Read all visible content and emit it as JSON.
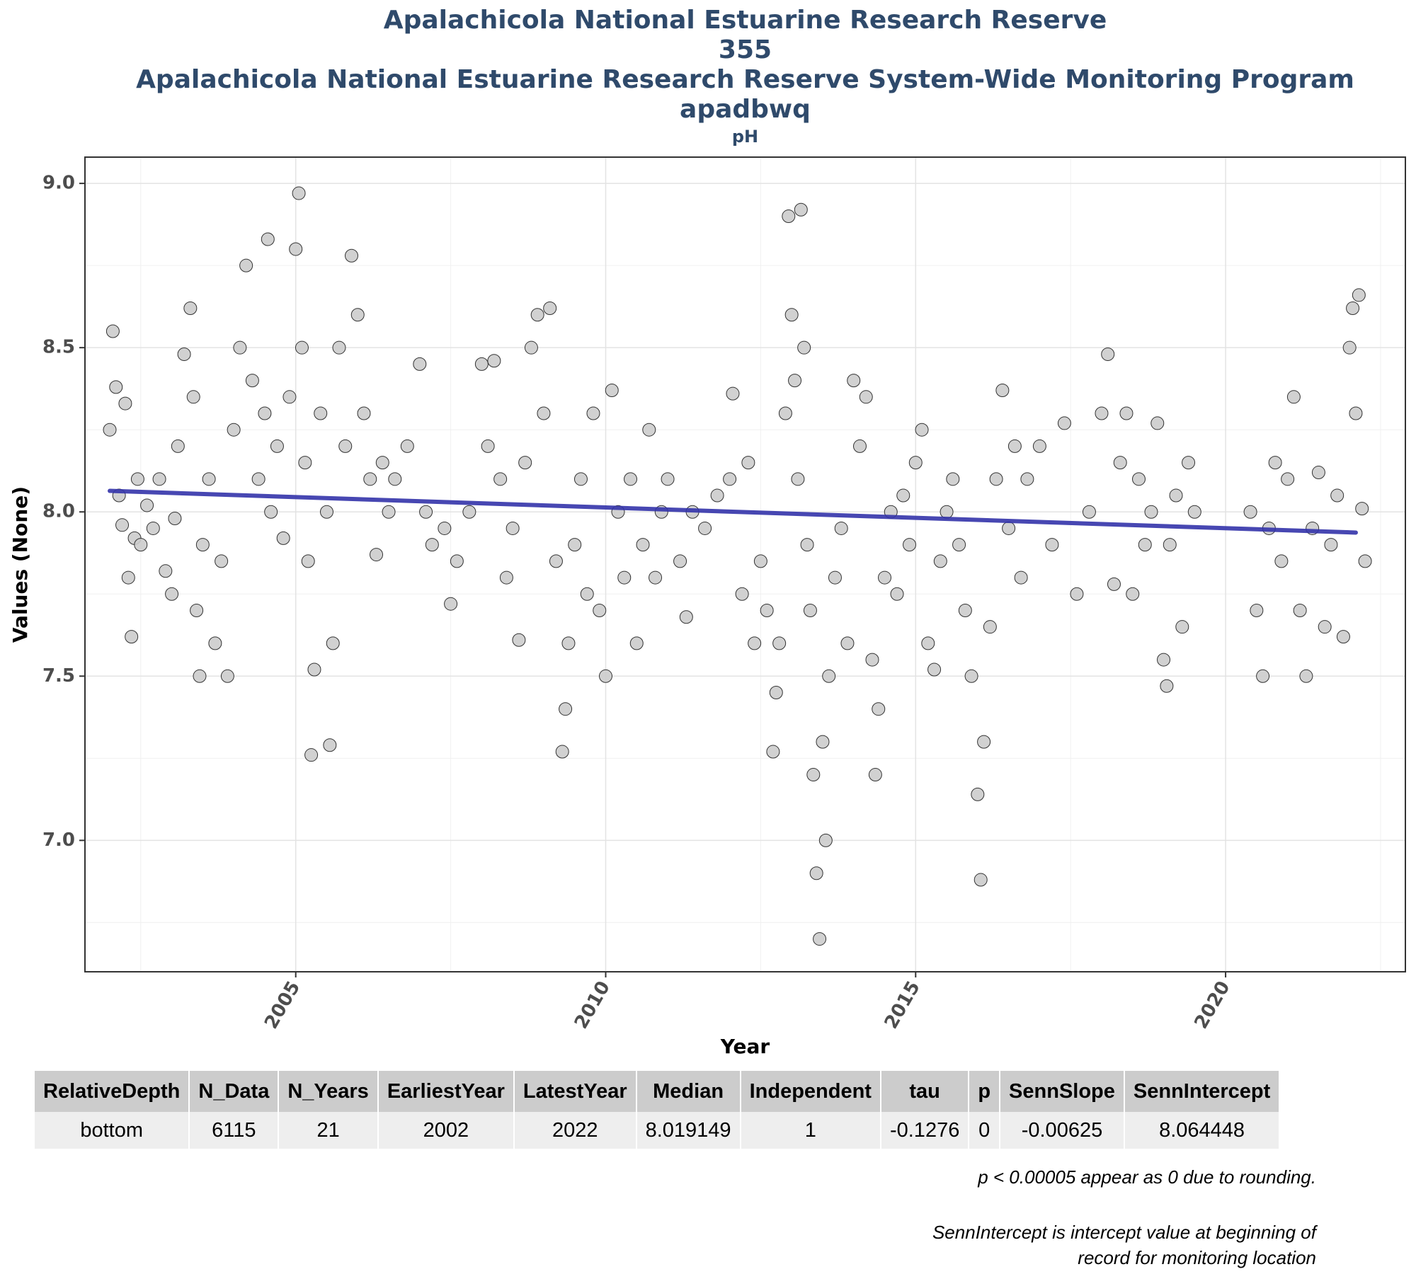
{
  "header": {
    "title_line1": "Apalachicola National Estuarine Research Reserve",
    "title_line2": "355",
    "title_line3": "Apalachicola National Estuarine Research Reserve System-Wide Monitoring Program",
    "title_line4": "apadbwq",
    "subtitle": "pH"
  },
  "chart_data": {
    "type": "scatter",
    "title": "Apalachicola National Estuarine Research Reserve",
    "subtitle": "pH",
    "xlabel": "Year",
    "ylabel": "Values (None)",
    "xlim": [
      2001.6,
      2022.9
    ],
    "ylim": [
      6.6,
      9.08
    ],
    "x_ticks": [
      2005,
      2010,
      2015,
      2020
    ],
    "y_ticks": [
      7.0,
      7.5,
      8.0,
      8.5,
      9.0
    ],
    "grid": true,
    "legend": "none",
    "point_color": "#cccccc",
    "point_edge_color": "#333333",
    "trend_color": "#3333aa",
    "trend_line": {
      "x": [
        2002.0,
        2022.1
      ],
      "y": [
        8.064,
        7.937
      ]
    },
    "series": [
      {
        "values": [
          {
            "x": 2002.0,
            "y": 8.25
          },
          {
            "x": 2002.05,
            "y": 8.55
          },
          {
            "x": 2002.1,
            "y": 8.38
          },
          {
            "x": 2002.15,
            "y": 8.05
          },
          {
            "x": 2002.2,
            "y": 7.96
          },
          {
            "x": 2002.25,
            "y": 8.33
          },
          {
            "x": 2002.3,
            "y": 7.8
          },
          {
            "x": 2002.35,
            "y": 7.62
          },
          {
            "x": 2002.4,
            "y": 7.92
          },
          {
            "x": 2002.45,
            "y": 8.1
          },
          {
            "x": 2002.5,
            "y": 7.9
          },
          {
            "x": 2002.6,
            "y": 8.02
          },
          {
            "x": 2002.7,
            "y": 7.95
          },
          {
            "x": 2002.8,
            "y": 8.1
          },
          {
            "x": 2002.9,
            "y": 7.82
          },
          {
            "x": 2003.0,
            "y": 7.75
          },
          {
            "x": 2003.05,
            "y": 7.98
          },
          {
            "x": 2003.1,
            "y": 8.2
          },
          {
            "x": 2003.2,
            "y": 8.48
          },
          {
            "x": 2003.3,
            "y": 8.62
          },
          {
            "x": 2003.35,
            "y": 8.35
          },
          {
            "x": 2003.4,
            "y": 7.7
          },
          {
            "x": 2003.45,
            "y": 7.5
          },
          {
            "x": 2003.5,
            "y": 7.9
          },
          {
            "x": 2003.6,
            "y": 8.1
          },
          {
            "x": 2003.7,
            "y": 7.6
          },
          {
            "x": 2003.8,
            "y": 7.85
          },
          {
            "x": 2003.9,
            "y": 7.5
          },
          {
            "x": 2004.0,
            "y": 8.25
          },
          {
            "x": 2004.1,
            "y": 8.5
          },
          {
            "x": 2004.2,
            "y": 8.75
          },
          {
            "x": 2004.3,
            "y": 8.4
          },
          {
            "x": 2004.4,
            "y": 8.1
          },
          {
            "x": 2004.5,
            "y": 8.3
          },
          {
            "x": 2004.55,
            "y": 8.83
          },
          {
            "x": 2004.6,
            "y": 8.0
          },
          {
            "x": 2004.7,
            "y": 8.2
          },
          {
            "x": 2004.8,
            "y": 7.92
          },
          {
            "x": 2004.9,
            "y": 8.35
          },
          {
            "x": 2005.0,
            "y": 8.8
          },
          {
            "x": 2005.05,
            "y": 8.97
          },
          {
            "x": 2005.1,
            "y": 8.5
          },
          {
            "x": 2005.15,
            "y": 8.15
          },
          {
            "x": 2005.2,
            "y": 7.85
          },
          {
            "x": 2005.25,
            "y": 7.26
          },
          {
            "x": 2005.3,
            "y": 7.52
          },
          {
            "x": 2005.4,
            "y": 8.3
          },
          {
            "x": 2005.5,
            "y": 8.0
          },
          {
            "x": 2005.55,
            "y": 7.29
          },
          {
            "x": 2005.6,
            "y": 7.6
          },
          {
            "x": 2005.7,
            "y": 8.5
          },
          {
            "x": 2005.8,
            "y": 8.2
          },
          {
            "x": 2005.9,
            "y": 8.78
          },
          {
            "x": 2006.0,
            "y": 8.6
          },
          {
            "x": 2006.1,
            "y": 8.3
          },
          {
            "x": 2006.2,
            "y": 8.1
          },
          {
            "x": 2006.3,
            "y": 7.87
          },
          {
            "x": 2006.4,
            "y": 8.15
          },
          {
            "x": 2006.5,
            "y": 8.0
          },
          {
            "x": 2006.6,
            "y": 8.1
          },
          {
            "x": 2006.8,
            "y": 8.2
          },
          {
            "x": 2007.0,
            "y": 8.45
          },
          {
            "x": 2007.1,
            "y": 8.0
          },
          {
            "x": 2007.2,
            "y": 7.9
          },
          {
            "x": 2007.4,
            "y": 7.95
          },
          {
            "x": 2007.5,
            "y": 7.72
          },
          {
            "x": 2007.6,
            "y": 7.85
          },
          {
            "x": 2007.8,
            "y": 8.0
          },
          {
            "x": 2008.0,
            "y": 8.45
          },
          {
            "x": 2008.1,
            "y": 8.2
          },
          {
            "x": 2008.2,
            "y": 8.46
          },
          {
            "x": 2008.3,
            "y": 8.1
          },
          {
            "x": 2008.4,
            "y": 7.8
          },
          {
            "x": 2008.5,
            "y": 7.95
          },
          {
            "x": 2008.6,
            "y": 7.61
          },
          {
            "x": 2008.7,
            "y": 8.15
          },
          {
            "x": 2008.8,
            "y": 8.5
          },
          {
            "x": 2008.9,
            "y": 8.6
          },
          {
            "x": 2009.0,
            "y": 8.3
          },
          {
            "x": 2009.1,
            "y": 8.62
          },
          {
            "x": 2009.2,
            "y": 7.85
          },
          {
            "x": 2009.3,
            "y": 7.27
          },
          {
            "x": 2009.35,
            "y": 7.4
          },
          {
            "x": 2009.4,
            "y": 7.6
          },
          {
            "x": 2009.5,
            "y": 7.9
          },
          {
            "x": 2009.6,
            "y": 8.1
          },
          {
            "x": 2009.7,
            "y": 7.75
          },
          {
            "x": 2009.8,
            "y": 8.3
          },
          {
            "x": 2009.9,
            "y": 7.7
          },
          {
            "x": 2010.0,
            "y": 7.5
          },
          {
            "x": 2010.1,
            "y": 8.37
          },
          {
            "x": 2010.2,
            "y": 8.0
          },
          {
            "x": 2010.3,
            "y": 7.8
          },
          {
            "x": 2010.4,
            "y": 8.1
          },
          {
            "x": 2010.5,
            "y": 7.6
          },
          {
            "x": 2010.6,
            "y": 7.9
          },
          {
            "x": 2010.7,
            "y": 8.25
          },
          {
            "x": 2010.8,
            "y": 7.8
          },
          {
            "x": 2010.9,
            "y": 8.0
          },
          {
            "x": 2011.0,
            "y": 8.1
          },
          {
            "x": 2011.2,
            "y": 7.85
          },
          {
            "x": 2011.3,
            "y": 7.68
          },
          {
            "x": 2011.4,
            "y": 8.0
          },
          {
            "x": 2011.6,
            "y": 7.95
          },
          {
            "x": 2011.8,
            "y": 8.05
          },
          {
            "x": 2012.0,
            "y": 8.1
          },
          {
            "x": 2012.05,
            "y": 8.36
          },
          {
            "x": 2012.2,
            "y": 7.75
          },
          {
            "x": 2012.3,
            "y": 8.15
          },
          {
            "x": 2012.4,
            "y": 7.6
          },
          {
            "x": 2012.5,
            "y": 7.85
          },
          {
            "x": 2012.6,
            "y": 7.7
          },
          {
            "x": 2012.7,
            "y": 7.27
          },
          {
            "x": 2012.75,
            "y": 7.45
          },
          {
            "x": 2012.8,
            "y": 7.6
          },
          {
            "x": 2012.9,
            "y": 8.3
          },
          {
            "x": 2012.95,
            "y": 8.9
          },
          {
            "x": 2013.0,
            "y": 8.6
          },
          {
            "x": 2013.05,
            "y": 8.4
          },
          {
            "x": 2013.1,
            "y": 8.1
          },
          {
            "x": 2013.15,
            "y": 8.92
          },
          {
            "x": 2013.2,
            "y": 8.5
          },
          {
            "x": 2013.25,
            "y": 7.9
          },
          {
            "x": 2013.3,
            "y": 7.7
          },
          {
            "x": 2013.35,
            "y": 7.2
          },
          {
            "x": 2013.4,
            "y": 6.9
          },
          {
            "x": 2013.45,
            "y": 6.7
          },
          {
            "x": 2013.5,
            "y": 7.3
          },
          {
            "x": 2013.55,
            "y": 7.0
          },
          {
            "x": 2013.6,
            "y": 7.5
          },
          {
            "x": 2013.7,
            "y": 7.8
          },
          {
            "x": 2013.8,
            "y": 7.95
          },
          {
            "x": 2013.9,
            "y": 7.6
          },
          {
            "x": 2014.0,
            "y": 8.4
          },
          {
            "x": 2014.1,
            "y": 8.2
          },
          {
            "x": 2014.2,
            "y": 8.35
          },
          {
            "x": 2014.3,
            "y": 7.55
          },
          {
            "x": 2014.35,
            "y": 7.2
          },
          {
            "x": 2014.4,
            "y": 7.4
          },
          {
            "x": 2014.5,
            "y": 7.8
          },
          {
            "x": 2014.6,
            "y": 8.0
          },
          {
            "x": 2014.7,
            "y": 7.75
          },
          {
            "x": 2014.8,
            "y": 8.05
          },
          {
            "x": 2014.9,
            "y": 7.9
          },
          {
            "x": 2015.0,
            "y": 8.15
          },
          {
            "x": 2015.1,
            "y": 8.25
          },
          {
            "x": 2015.2,
            "y": 7.6
          },
          {
            "x": 2015.3,
            "y": 7.52
          },
          {
            "x": 2015.4,
            "y": 7.85
          },
          {
            "x": 2015.5,
            "y": 8.0
          },
          {
            "x": 2015.6,
            "y": 8.1
          },
          {
            "x": 2015.7,
            "y": 7.9
          },
          {
            "x": 2015.8,
            "y": 7.7
          },
          {
            "x": 2015.9,
            "y": 7.5
          },
          {
            "x": 2016.0,
            "y": 7.14
          },
          {
            "x": 2016.05,
            "y": 6.88
          },
          {
            "x": 2016.1,
            "y": 7.3
          },
          {
            "x": 2016.2,
            "y": 7.65
          },
          {
            "x": 2016.3,
            "y": 8.1
          },
          {
            "x": 2016.4,
            "y": 8.37
          },
          {
            "x": 2016.5,
            "y": 7.95
          },
          {
            "x": 2016.6,
            "y": 8.2
          },
          {
            "x": 2016.7,
            "y": 7.8
          },
          {
            "x": 2016.8,
            "y": 8.1
          },
          {
            "x": 2017.0,
            "y": 8.2
          },
          {
            "x": 2017.2,
            "y": 7.9
          },
          {
            "x": 2017.4,
            "y": 8.27
          },
          {
            "x": 2017.6,
            "y": 7.75
          },
          {
            "x": 2017.8,
            "y": 8.0
          },
          {
            "x": 2018.0,
            "y": 8.3
          },
          {
            "x": 2018.1,
            "y": 8.48
          },
          {
            "x": 2018.2,
            "y": 7.78
          },
          {
            "x": 2018.3,
            "y": 8.15
          },
          {
            "x": 2018.4,
            "y": 8.3
          },
          {
            "x": 2018.5,
            "y": 7.75
          },
          {
            "x": 2018.6,
            "y": 8.1
          },
          {
            "x": 2018.7,
            "y": 7.9
          },
          {
            "x": 2018.8,
            "y": 8.0
          },
          {
            "x": 2018.9,
            "y": 8.27
          },
          {
            "x": 2019.0,
            "y": 7.55
          },
          {
            "x": 2019.05,
            "y": 7.47
          },
          {
            "x": 2019.1,
            "y": 7.9
          },
          {
            "x": 2019.2,
            "y": 8.05
          },
          {
            "x": 2019.3,
            "y": 7.65
          },
          {
            "x": 2019.4,
            "y": 8.15
          },
          {
            "x": 2019.5,
            "y": 8.0
          },
          {
            "x": 2020.4,
            "y": 8.0
          },
          {
            "x": 2020.5,
            "y": 7.7
          },
          {
            "x": 2020.6,
            "y": 7.5
          },
          {
            "x": 2020.7,
            "y": 7.95
          },
          {
            "x": 2020.8,
            "y": 8.15
          },
          {
            "x": 2020.9,
            "y": 7.85
          },
          {
            "x": 2021.0,
            "y": 8.1
          },
          {
            "x": 2021.1,
            "y": 8.35
          },
          {
            "x": 2021.2,
            "y": 7.7
          },
          {
            "x": 2021.3,
            "y": 7.5
          },
          {
            "x": 2021.4,
            "y": 7.95
          },
          {
            "x": 2021.5,
            "y": 8.12
          },
          {
            "x": 2021.6,
            "y": 7.65
          },
          {
            "x": 2021.7,
            "y": 7.9
          },
          {
            "x": 2021.8,
            "y": 8.05
          },
          {
            "x": 2021.9,
            "y": 7.62
          },
          {
            "x": 2022.0,
            "y": 8.5
          },
          {
            "x": 2022.05,
            "y": 8.62
          },
          {
            "x": 2022.1,
            "y": 8.3
          },
          {
            "x": 2022.15,
            "y": 8.66
          },
          {
            "x": 2022.2,
            "y": 8.01
          },
          {
            "x": 2022.25,
            "y": 7.85
          }
        ]
      }
    ]
  },
  "stats_table": {
    "headers": [
      "RelativeDepth",
      "N_Data",
      "N_Years",
      "EarliestYear",
      "LatestYear",
      "Median",
      "Independent",
      "tau",
      "p",
      "SennSlope",
      "SennIntercept"
    ],
    "row": [
      "bottom",
      "6115",
      "21",
      "2002",
      "2022",
      "8.019149",
      "1",
      "-0.1276",
      "0",
      "-0.00625",
      "8.064448"
    ]
  },
  "footnotes": {
    "note1": "p < 0.00005 appear as 0 due to rounding.",
    "note2_line1": "SennIntercept is intercept value at beginning of",
    "note2_line2": "record for monitoring location"
  }
}
